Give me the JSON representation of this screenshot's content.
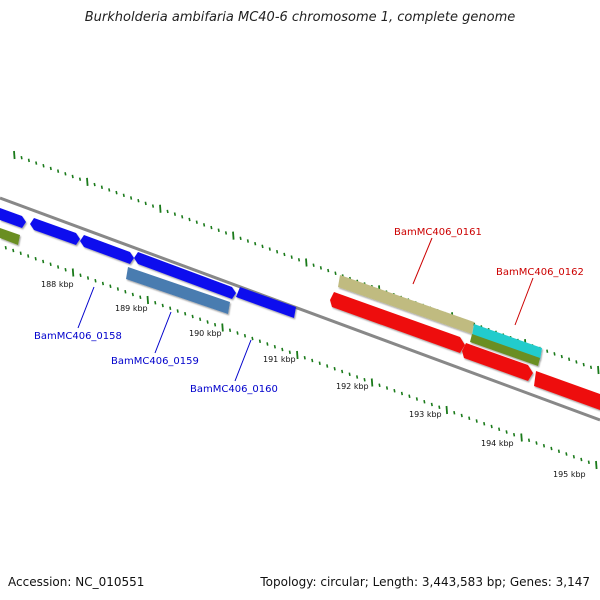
{
  "title": "Burkholderia ambifaria MC40-6 chromosome 1, complete genome",
  "footer": {
    "accession": "Accession: NC_010551",
    "summary": "Topology: circular; Length: 3,443,583 bp; Genes: 3,147"
  },
  "ruler_labels": [
    "188 kbp",
    "189 kbp",
    "190 kbp",
    "191 kbp",
    "192 kbp",
    "193 kbp",
    "194 kbp",
    "195 kbp"
  ],
  "gene_labels": [
    {
      "text": "BamMC406_0158",
      "color": "#0000cc"
    },
    {
      "text": "BamMC406_0159",
      "color": "#0000cc"
    },
    {
      "text": "BamMC406_0160",
      "color": "#0000cc"
    },
    {
      "text": "BamMC406_0161",
      "color": "#cc0000"
    },
    {
      "text": "BamMC406_0162",
      "color": "#cc0000"
    }
  ],
  "colors": {
    "backbone": "#888888",
    "tick": "#1a7a1a",
    "blue_gene": "#1010ee",
    "steel_gene": "#4a7bb0",
    "red_gene": "#ee1111",
    "khaki_gene": "#c0bb80",
    "olive_gene": "#6b8e23",
    "cyan_gene": "#22cccc"
  }
}
